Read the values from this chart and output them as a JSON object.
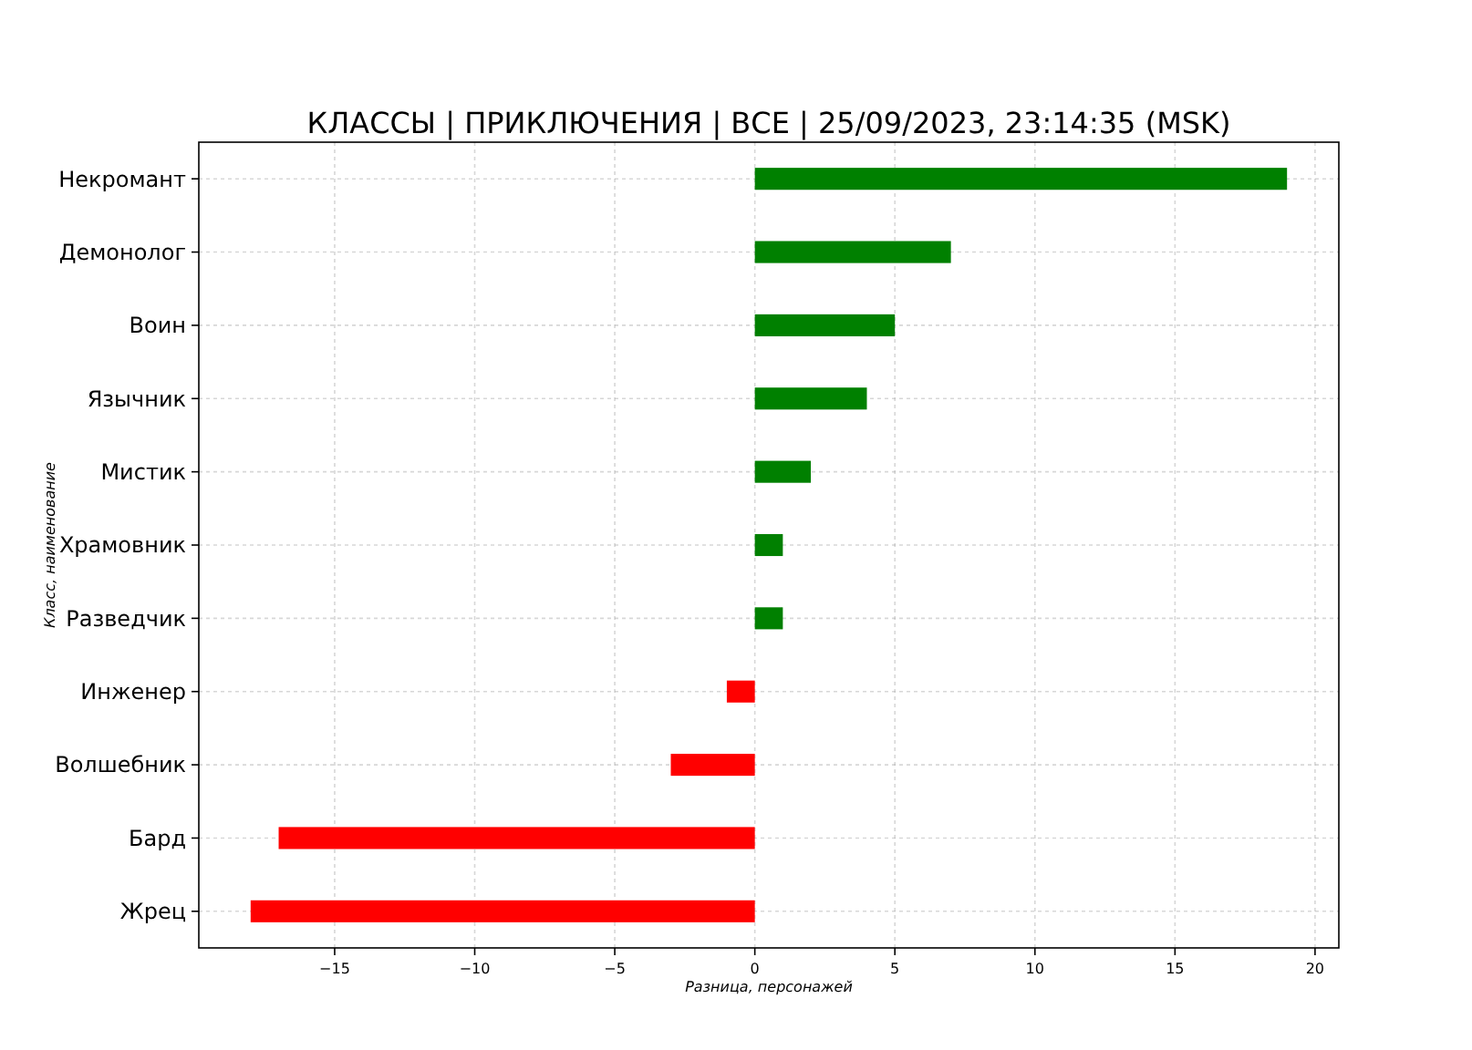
{
  "chart_data": {
    "type": "bar",
    "orientation": "horizontal",
    "title": "КЛАССЫ | ПРИКЛЮЧЕНИЯ | ВСЕ | 25/09/2023, 23:14:35 (MSK)",
    "xlabel": "Разница, персонажей",
    "ylabel": "Класс, наименование",
    "categories": [
      "Некромант",
      "Демонолог",
      "Воин",
      "Язычник",
      "Мистик",
      "Храмовник",
      "Разведчик",
      "Инженер",
      "Волшебник",
      "Бард",
      "Жрец"
    ],
    "values": [
      19,
      7,
      5,
      4,
      2,
      1,
      1,
      -1,
      -3,
      -17,
      -18
    ],
    "colors": [
      "#008000",
      "#008000",
      "#008000",
      "#008000",
      "#008000",
      "#008000",
      "#008000",
      "#ff0000",
      "#ff0000",
      "#ff0000",
      "#ff0000"
    ],
    "xlim": [
      -19.85,
      20.85
    ],
    "xticks": [
      {
        "value": -15,
        "label": "−15"
      },
      {
        "value": -10,
        "label": "−10"
      },
      {
        "value": -5,
        "label": "−5"
      },
      0,
      5,
      10,
      15,
      20
    ],
    "grid": true
  }
}
